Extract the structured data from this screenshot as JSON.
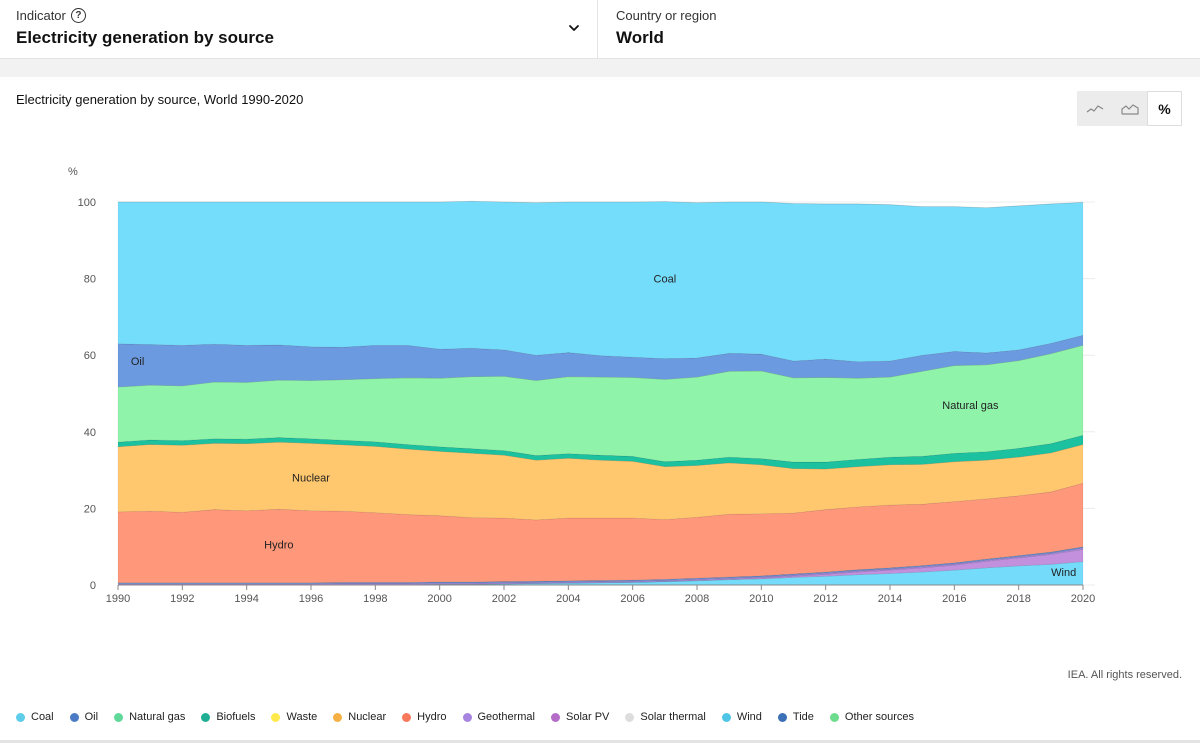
{
  "header": {
    "indicator_label": "Indicator",
    "indicator_value": "Electricity generation by source",
    "country_label": "Country or region",
    "country_value": "World"
  },
  "view_toggles": [
    {
      "name": "line-chart-icon",
      "active": false
    },
    {
      "name": "area-chart-icon",
      "active": false
    },
    {
      "name": "percent",
      "label": "%",
      "active": true
    }
  ],
  "credit": "IEA. All rights reserved.",
  "legend": [
    {
      "label": "Coal",
      "color": "#5ecde9"
    },
    {
      "label": "Oil",
      "color": "#4b7bc4"
    },
    {
      "label": "Natural gas",
      "color": "#5fd89a"
    },
    {
      "label": "Biofuels",
      "color": "#1fae93"
    },
    {
      "label": "Waste",
      "color": "#ffe94d"
    },
    {
      "label": "Nuclear",
      "color": "#f4b042"
    },
    {
      "label": "Hydro",
      "color": "#f8785c"
    },
    {
      "label": "Geothermal",
      "color": "#a784e0"
    },
    {
      "label": "Solar PV",
      "color": "#b56cc8"
    },
    {
      "label": "Solar thermal",
      "color": "#dddddd"
    },
    {
      "label": "Wind",
      "color": "#4ec5e6"
    },
    {
      "label": "Tide",
      "color": "#3b6fb6"
    },
    {
      "label": "Other sources",
      "color": "#6ddc8c"
    }
  ],
  "chart_data": {
    "type": "area",
    "stacked": true,
    "normalized_percent": true,
    "title": "Electricity generation by source, World 1990-2020",
    "ylabel": "%",
    "ylim": [
      0,
      100
    ],
    "yticks": [
      0,
      20,
      40,
      60,
      80,
      100
    ],
    "xticks": [
      1990,
      1992,
      1994,
      1996,
      1998,
      2000,
      2002,
      2004,
      2006,
      2008,
      2010,
      2012,
      2014,
      2016,
      2018,
      2020
    ],
    "x": [
      1990,
      1991,
      1992,
      1993,
      1994,
      1995,
      1996,
      1997,
      1998,
      1999,
      2000,
      2001,
      2002,
      2003,
      2004,
      2005,
      2006,
      2007,
      2008,
      2009,
      2010,
      2011,
      2012,
      2013,
      2014,
      2015,
      2016,
      2017,
      2018,
      2019,
      2020
    ],
    "series_stack_bottom_to_top": [
      {
        "name": "Wind",
        "color": "#74dbfb",
        "values": [
          0.0,
          0.0,
          0.0,
          0.0,
          0.0,
          0.0,
          0.0,
          0.1,
          0.1,
          0.1,
          0.2,
          0.2,
          0.3,
          0.4,
          0.5,
          0.6,
          0.7,
          0.9,
          1.1,
          1.4,
          1.6,
          2.0,
          2.3,
          2.7,
          3.0,
          3.4,
          3.9,
          4.5,
          5.0,
          5.4,
          6.1
        ]
      },
      {
        "name": "Solar PV",
        "color": "#c290dc",
        "values": [
          0.0,
          0.0,
          0.0,
          0.0,
          0.0,
          0.0,
          0.0,
          0.0,
          0.0,
          0.0,
          0.0,
          0.0,
          0.0,
          0.0,
          0.0,
          0.0,
          0.0,
          0.0,
          0.1,
          0.1,
          0.2,
          0.3,
          0.5,
          0.7,
          0.9,
          1.1,
          1.3,
          1.7,
          2.1,
          2.6,
          3.2
        ]
      },
      {
        "name": "Geothermal",
        "color": "#a488df",
        "values": [
          0.3,
          0.3,
          0.3,
          0.3,
          0.3,
          0.3,
          0.3,
          0.3,
          0.3,
          0.3,
          0.3,
          0.3,
          0.3,
          0.3,
          0.3,
          0.3,
          0.3,
          0.3,
          0.3,
          0.3,
          0.3,
          0.3,
          0.3,
          0.3,
          0.3,
          0.3,
          0.3,
          0.3,
          0.3,
          0.3,
          0.4
        ]
      },
      {
        "name": "Other sources",
        "color": "#6c8fd0",
        "values": [
          0.3,
          0.3,
          0.3,
          0.3,
          0.3,
          0.3,
          0.3,
          0.3,
          0.3,
          0.3,
          0.3,
          0.3,
          0.3,
          0.3,
          0.3,
          0.3,
          0.3,
          0.3,
          0.3,
          0.3,
          0.3,
          0.3,
          0.3,
          0.3,
          0.3,
          0.3,
          0.3,
          0.3,
          0.3,
          0.3,
          0.3
        ]
      },
      {
        "name": "Hydro",
        "color": "#ff977a",
        "values": [
          18.5,
          18.7,
          18.4,
          19.1,
          18.8,
          19.2,
          18.8,
          18.6,
          18.2,
          17.7,
          17.3,
          16.8,
          16.6,
          16.0,
          16.4,
          16.3,
          16.2,
          15.6,
          15.9,
          16.4,
          16.2,
          15.9,
          16.3,
          16.4,
          16.4,
          16.0,
          16.0,
          15.7,
          15.6,
          15.7,
          16.6
        ]
      },
      {
        "name": "Nuclear",
        "color": "#ffc86e",
        "values": [
          17.0,
          17.4,
          17.5,
          17.3,
          17.5,
          17.5,
          17.6,
          17.3,
          17.3,
          17.1,
          16.8,
          16.8,
          16.4,
          15.6,
          15.6,
          15.1,
          14.8,
          13.8,
          13.5,
          13.4,
          12.8,
          11.6,
          10.6,
          10.5,
          10.5,
          10.4,
          10.4,
          10.1,
          10.1,
          10.2,
          10.1
        ]
      },
      {
        "name": "Biofuels",
        "color": "#1cc1a0",
        "values": [
          1.2,
          1.2,
          1.2,
          1.2,
          1.2,
          1.2,
          1.2,
          1.2,
          1.2,
          1.2,
          1.2,
          1.2,
          1.2,
          1.2,
          1.2,
          1.3,
          1.3,
          1.3,
          1.4,
          1.5,
          1.6,
          1.7,
          1.8,
          1.9,
          2.0,
          2.1,
          2.2,
          2.2,
          2.3,
          2.4,
          2.4
        ]
      },
      {
        "name": "Natural gas",
        "color": "#8ff3a9",
        "values": [
          14.4,
          14.3,
          14.3,
          14.8,
          14.8,
          15.0,
          15.2,
          15.8,
          16.5,
          17.4,
          17.9,
          18.8,
          19.4,
          19.6,
          20.1,
          20.4,
          20.6,
          21.5,
          21.7,
          22.4,
          22.9,
          22.0,
          22.1,
          21.2,
          20.9,
          22.2,
          22.9,
          22.7,
          22.9,
          23.5,
          23.5
        ]
      },
      {
        "name": "Oil",
        "color": "#6c9ae0",
        "values": [
          11.3,
          10.6,
          10.6,
          9.9,
          9.7,
          9.2,
          8.8,
          8.5,
          8.7,
          8.5,
          7.6,
          7.4,
          6.9,
          6.6,
          6.3,
          5.6,
          5.3,
          5.4,
          5.0,
          4.7,
          4.4,
          4.4,
          4.8,
          4.3,
          4.2,
          4.2,
          3.7,
          3.1,
          2.8,
          2.7,
          2.6
        ]
      },
      {
        "name": "Coal",
        "color": "#75ddfc",
        "values": [
          37.0,
          37.2,
          37.4,
          37.1,
          37.4,
          37.3,
          37.8,
          37.9,
          37.4,
          37.4,
          38.4,
          38.4,
          38.6,
          39.8,
          39.3,
          40.1,
          40.5,
          41.0,
          40.5,
          39.5,
          39.7,
          41.1,
          40.5,
          41.2,
          40.8,
          38.8,
          37.8,
          37.9,
          37.6,
          36.4,
          34.7
        ]
      }
    ],
    "annotations": [
      {
        "text": "Coal",
        "x": 2007,
        "y": 79
      },
      {
        "text": "Oil",
        "x": 1990.4,
        "y": 57.5
      },
      {
        "text": "Natural gas",
        "x": 2016.5,
        "y": 46
      },
      {
        "text": "Nuclear",
        "x": 1996,
        "y": 27
      },
      {
        "text": "Hydro",
        "x": 1995,
        "y": 9.5
      },
      {
        "text": "Wind",
        "x": 2019.4,
        "y": 2.3
      }
    ]
  }
}
